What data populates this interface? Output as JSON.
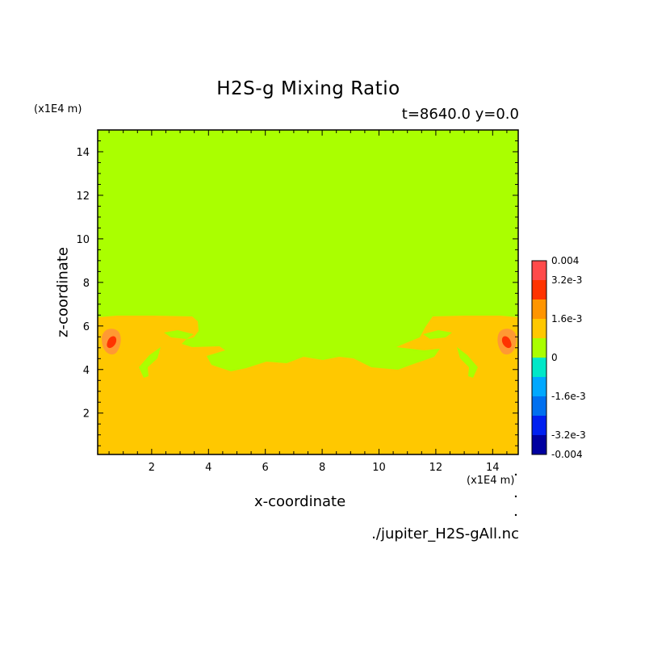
{
  "chart_data": {
    "type": "heatmap",
    "title": "H2S-g Mixing Ratio",
    "subtitle": "t=8640.0 y=0.0",
    "xlabel": "x-coordinate",
    "ylabel": "z-coordinate",
    "x_unit": "(x1E4 m)",
    "y_unit": "(x1E4 m)",
    "source": "./jupiter_H2S-gAll.nc",
    "xlim": [
      0.1,
      14.9
    ],
    "ylim": [
      0.1,
      15
    ],
    "x_ticks": [
      "2",
      "4",
      "6",
      "8",
      "10",
      "12",
      "14"
    ],
    "x_tick_values": [
      2,
      4,
      6,
      8,
      10,
      12,
      14
    ],
    "y_ticks": [
      "2",
      "4",
      "6",
      "8",
      "10",
      "12",
      "14"
    ],
    "y_tick_values": [
      2,
      4,
      6,
      8,
      10,
      12,
      14
    ],
    "regions": [
      {
        "level": "0",
        "color": "#aaff00",
        "description": "upper domain, z above ~6.3"
      },
      {
        "level": "1.6e-3",
        "color": "#ffc800",
        "description": "lower domain, z below ~4.5 with plumes up to ~6.3"
      },
      {
        "level": "2.4e-3",
        "color": "#ff9933",
        "description": "spots near x=0.5 and x=14.5, z~5.2"
      },
      {
        "level": "3.2e-3",
        "color": "#ff3300",
        "description": "cores of spots"
      }
    ],
    "colorbar": {
      "labels": [
        "0.004",
        "3.2e-3",
        "1.6e-3",
        "0",
        "-1.6e-3",
        "-3.2e-3",
        "-0.004"
      ],
      "label_values": [
        0.004,
        0.0032,
        0.0016,
        0,
        -0.0016,
        -0.0032,
        -0.004
      ],
      "range": [
        -0.004,
        0.004
      ],
      "colors": [
        "#0000a0",
        "#0020f0",
        "#0070f0",
        "#00a8ff",
        "#00e8c8",
        "#aaff00",
        "#ffc800",
        "#ff9500",
        "#ff3300",
        "#ff4a4a"
      ]
    }
  }
}
